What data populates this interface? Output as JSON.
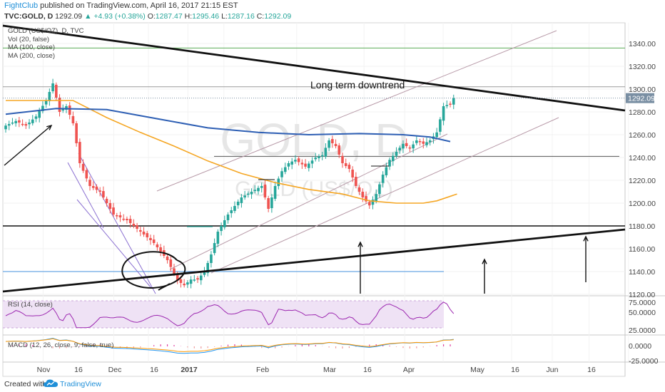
{
  "header": {
    "author": "FightClub",
    "published_text": "published on TradingView.com, April 16, 2017 21:15 EST",
    "symbol": "TVC:GOLD, D",
    "last": "1292.09",
    "change": "▲ +4.93 (+0.38%)",
    "o_label": "O:",
    "o_val": "1287.47",
    "h_label": "H:",
    "h_val": "1295.46",
    "l_label": "L:",
    "l_val": "1287.16",
    "c_label": "C:",
    "c_val": "1292.09"
  },
  "legend": {
    "title": "GOLD (US$/OZ), D, TVC",
    "vol": "Vol (20, false)",
    "ma100": "MA (100, close)",
    "ma200": "MA (200, close)",
    "rsi": "RSI (14, close)",
    "macd": "MACD (12, 26, close, 9, false, true)"
  },
  "watermark": {
    "symbol": "GOLD, D",
    "sub": "GOLD (US$/OZ)"
  },
  "annotation": "Long term downtrend",
  "price_badge": "1292.09",
  "footer": {
    "created_with": "Created with",
    "brand": "TradingView"
  },
  "colors": {
    "up": "#26a69a",
    "down": "#ef5350",
    "ma100": "#f5a623",
    "ma200": "#2e5fb4",
    "rsi": "#9c27b0",
    "macd": "#2196f3",
    "signal": "#ff9800",
    "badge": "#7a8fa3"
  },
  "chart_data": {
    "type": "candlestick",
    "title": "GOLD (US$/OZ), D, TVC",
    "y_axis": {
      "ylim": [
        1110,
        1350
      ],
      "ticks": [
        1120,
        1140,
        1160,
        1180,
        1200,
        1220,
        1240,
        1260,
        1280,
        1300,
        1320,
        1340
      ]
    },
    "x_axis": {
      "ticks": [
        "Nov",
        "16",
        "Dec",
        "16",
        "2017",
        "Feb",
        "Mar",
        "16",
        "Apr",
        "May",
        "16",
        "Jun",
        "16"
      ]
    },
    "rsi_axis": {
      "ticks": [
        "75.0000",
        "50.0000",
        "25.0000"
      ]
    },
    "macd_axis": {
      "ticks": [
        "0.0000",
        "-25.0000"
      ]
    },
    "ohlc_anchors": [
      {
        "t": 0,
        "close": 1268
      },
      {
        "t": 3,
        "close": 1272
      },
      {
        "t": 6,
        "close": 1268
      },
      {
        "t": 9,
        "close": 1276
      },
      {
        "t": 12,
        "close": 1290
      },
      {
        "t": 14,
        "close": 1305
      },
      {
        "t": 16,
        "close": 1280
      },
      {
        "t": 18,
        "close": 1285
      },
      {
        "t": 20,
        "close": 1270
      },
      {
        "t": 22,
        "close": 1235
      },
      {
        "t": 25,
        "close": 1215
      },
      {
        "t": 28,
        "close": 1210
      },
      {
        "t": 32,
        "close": 1190
      },
      {
        "t": 36,
        "close": 1185
      },
      {
        "t": 40,
        "close": 1175
      },
      {
        "t": 44,
        "close": 1165
      },
      {
        "t": 48,
        "close": 1150
      },
      {
        "t": 51,
        "close": 1132
      },
      {
        "t": 53,
        "close": 1128
      },
      {
        "t": 55,
        "close": 1133
      },
      {
        "t": 57,
        "close": 1133
      },
      {
        "t": 59,
        "close": 1140
      },
      {
        "t": 61,
        "close": 1155
      },
      {
        "t": 63,
        "close": 1175
      },
      {
        "t": 66,
        "close": 1190
      },
      {
        "t": 70,
        "close": 1205
      },
      {
        "t": 73,
        "close": 1210
      },
      {
        "t": 76,
        "close": 1215
      },
      {
        "t": 78,
        "close": 1195
      },
      {
        "t": 80,
        "close": 1215
      },
      {
        "t": 82,
        "close": 1228
      },
      {
        "t": 84,
        "close": 1235
      },
      {
        "t": 86,
        "close": 1238
      },
      {
        "t": 89,
        "close": 1232
      },
      {
        "t": 92,
        "close": 1240
      },
      {
        "t": 94,
        "close": 1242
      },
      {
        "t": 96,
        "close": 1255
      },
      {
        "t": 98,
        "close": 1250
      },
      {
        "t": 100,
        "close": 1235
      },
      {
        "t": 102,
        "close": 1230
      },
      {
        "t": 104,
        "close": 1215
      },
      {
        "t": 106,
        "close": 1205
      },
      {
        "t": 108,
        "close": 1198
      },
      {
        "t": 110,
        "close": 1208
      },
      {
        "t": 112,
        "close": 1225
      },
      {
        "t": 114,
        "close": 1238
      },
      {
        "t": 116,
        "close": 1245
      },
      {
        "t": 118,
        "close": 1252
      },
      {
        "t": 120,
        "close": 1248
      },
      {
        "t": 122,
        "close": 1255
      },
      {
        "t": 124,
        "close": 1252
      },
      {
        "t": 126,
        "close": 1255
      },
      {
        "t": 128,
        "close": 1262
      },
      {
        "t": 130,
        "close": 1285
      },
      {
        "t": 132,
        "close": 1287
      },
      {
        "t": 133,
        "close": 1292.09
      }
    ],
    "ma100": [
      [
        0,
        1290
      ],
      [
        20,
        1290
      ],
      [
        30,
        1275
      ],
      [
        40,
        1262
      ],
      [
        50,
        1250
      ],
      [
        60,
        1237
      ],
      [
        70,
        1226
      ],
      [
        80,
        1218
      ],
      [
        90,
        1212
      ],
      [
        100,
        1208
      ],
      [
        108,
        1202
      ],
      [
        116,
        1200
      ],
      [
        124,
        1200
      ],
      [
        128,
        1202
      ],
      [
        134,
        1208
      ]
    ],
    "ma200": [
      [
        0,
        1278
      ],
      [
        15,
        1283
      ],
      [
        30,
        1282
      ],
      [
        45,
        1274
      ],
      [
        60,
        1266
      ],
      [
        75,
        1262
      ],
      [
        90,
        1260
      ],
      [
        105,
        1261
      ],
      [
        118,
        1260
      ],
      [
        126,
        1258
      ],
      [
        132,
        1254
      ]
    ],
    "downtrend_line": {
      "from": [
        -2,
        1335
      ],
      "to": [
        190,
        1275
      ]
    },
    "uptrend_line": {
      "from": [
        -2,
        1114
      ],
      "to": [
        190,
        1166
      ]
    },
    "horizontal_lines": [
      1336,
      1302,
      1241,
      1180,
      1140
    ],
    "arrows_up_at": [
      110,
      146,
      178
    ]
  }
}
